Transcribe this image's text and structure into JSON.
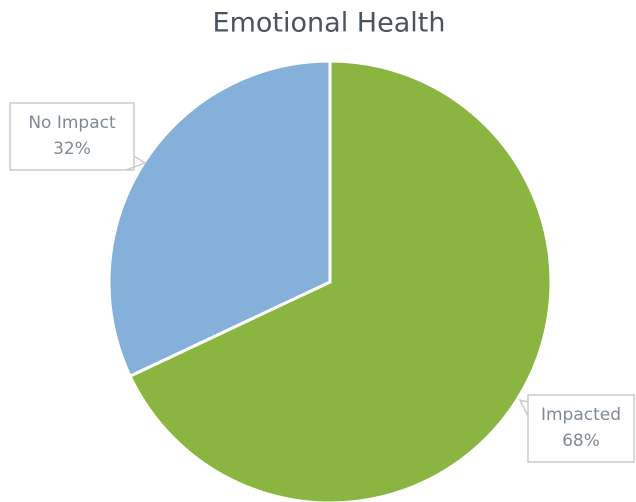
{
  "chart_data": {
    "type": "pie",
    "title": "Emotional Health",
    "categories": [
      "Impacted",
      "No Impact"
    ],
    "values": [
      68,
      32
    ],
    "value_labels": [
      "68%",
      "32%"
    ],
    "colors": [
      "#8ab540",
      "#84b0da"
    ]
  }
}
